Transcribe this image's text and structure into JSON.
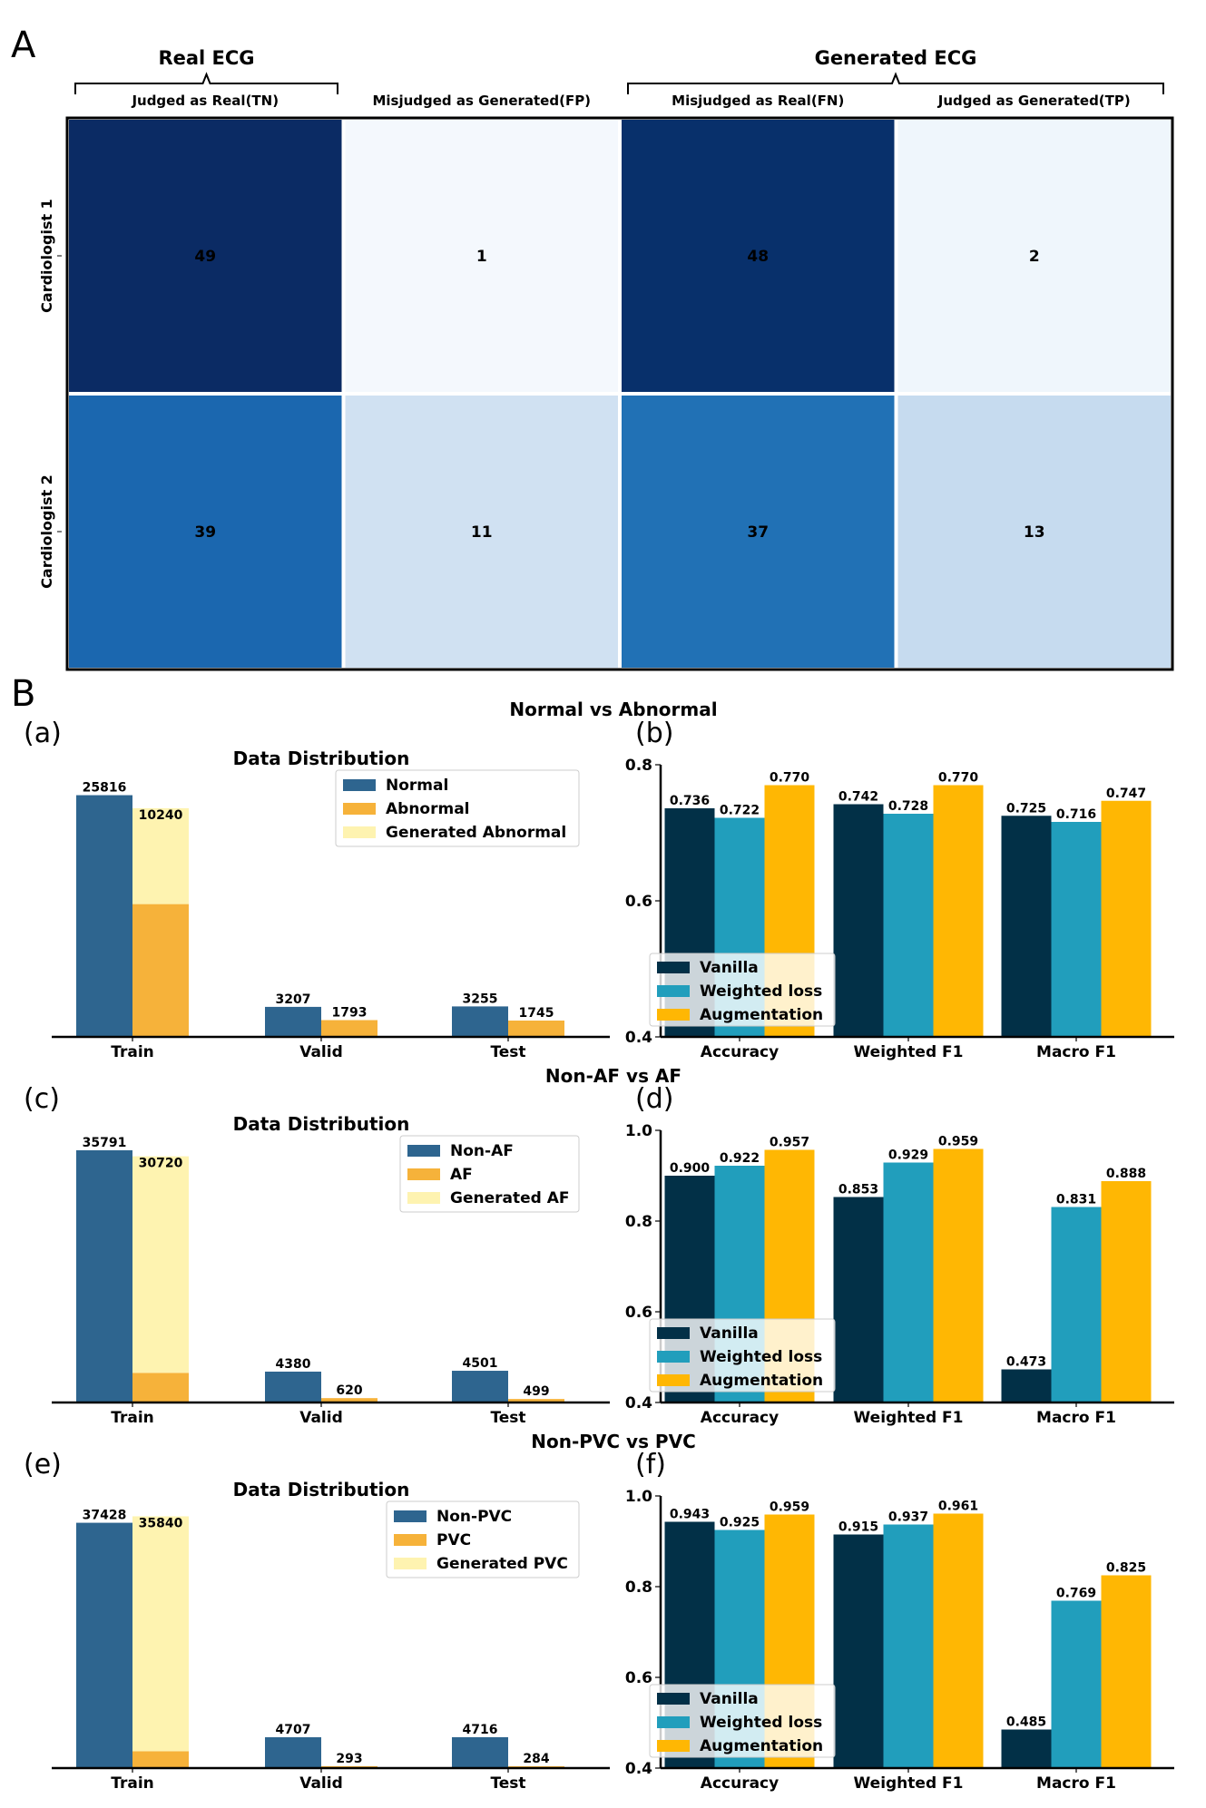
{
  "panel_a": {
    "letter": "A",
    "groups": [
      "Real ECG",
      "Generated ECG"
    ],
    "columns": [
      "Judged as Real(TN)",
      "Misjudged as Generated(FP)",
      "Misjudged as Real(FN)",
      "Judged as Generated(TP)"
    ],
    "rows": [
      "Cardiologist 1",
      "Cardiologist 2"
    ],
    "cells": [
      [
        49,
        1,
        48,
        2
      ],
      [
        39,
        11,
        37,
        13
      ]
    ],
    "colors": {
      "c49": "#0b2b64",
      "c48": "#08306b",
      "c39": "#1b67af",
      "c37": "#2171b5",
      "c1": "#f4f8fd",
      "c2": "#eff6fc",
      "c11": "#d0e1f2",
      "c13": "#c6dbef"
    }
  },
  "panel_b": {
    "letter": "B",
    "rows": [
      {
        "title": "Normal vs Abnormal",
        "left_tag": "(a)",
        "right_tag": "(b)"
      },
      {
        "title": "Non-AF vs AF",
        "left_tag": "(c)",
        "right_tag": "(d)"
      },
      {
        "title": "Non-PVC vs PVC",
        "left_tag": "(e)",
        "right_tag": "(f)"
      }
    ]
  },
  "chart_data": [
    {
      "type": "bar",
      "tag": "(a)",
      "title": "Data Distribution",
      "categories": [
        "Train",
        "Valid",
        "Test"
      ],
      "series": [
        {
          "name": "Normal",
          "values": [
            25816,
            3207,
            3255
          ]
        },
        {
          "name": "Abnormal",
          "values": [
            14184,
            1793,
            1745
          ]
        },
        {
          "name": "Generated Abnormal",
          "values": [
            10240,
            null,
            null
          ],
          "stacked_on": "Abnormal"
        }
      ],
      "ylim": [
        0,
        28000
      ],
      "legend": "top-right"
    },
    {
      "type": "bar",
      "tag": "(b)",
      "title": "",
      "categories": [
        "Accuracy",
        "Weighted F1",
        "Macro F1"
      ],
      "series": [
        {
          "name": "Vanilla",
          "values": [
            0.736,
            0.742,
            0.725
          ]
        },
        {
          "name": "Weighted loss",
          "values": [
            0.722,
            0.728,
            0.716
          ]
        },
        {
          "name": "Augmentation",
          "values": [
            0.77,
            0.77,
            0.747
          ]
        }
      ],
      "yticks": [
        "0.4",
        "0.6",
        "0.8"
      ],
      "ylim": [
        0.4,
        0.8
      ],
      "legend": "bottom-left"
    },
    {
      "type": "bar",
      "tag": "(c)",
      "title": "Data Distribution",
      "categories": [
        "Train",
        "Valid",
        "Test"
      ],
      "series": [
        {
          "name": "Non-AF",
          "values": [
            35791,
            4380,
            4501
          ]
        },
        {
          "name": "AF",
          "values": [
            4209,
            620,
            499
          ]
        },
        {
          "name": "Generated AF",
          "values": [
            30720,
            null,
            null
          ],
          "stacked_on": "AF"
        }
      ],
      "ylim": [
        0,
        37200
      ],
      "legend": "top-right"
    },
    {
      "type": "bar",
      "tag": "(d)",
      "title": "",
      "categories": [
        "Accuracy",
        "Weighted F1",
        "Macro F1"
      ],
      "series": [
        {
          "name": "Vanilla",
          "values": [
            0.9,
            0.853,
            0.473
          ]
        },
        {
          "name": "Weighted loss",
          "values": [
            0.922,
            0.929,
            0.831
          ]
        },
        {
          "name": "Augmentation",
          "values": [
            0.957,
            0.959,
            0.888
          ]
        }
      ],
      "yticks": [
        "0.4",
        "0.6",
        "0.8",
        "1.0"
      ],
      "ylim": [
        0.4,
        1.0
      ],
      "legend": "bottom-left"
    },
    {
      "type": "bar",
      "tag": "(e)",
      "title": "Data Distribution",
      "categories": [
        "Train",
        "Valid",
        "Test"
      ],
      "series": [
        {
          "name": "Non-PVC",
          "values": [
            37428,
            4707,
            4716
          ]
        },
        {
          "name": "PVC",
          "values": [
            2572,
            293,
            284
          ]
        },
        {
          "name": "Generated PVC",
          "values": [
            35840,
            null,
            null
          ],
          "stacked_on": "PVC"
        }
      ],
      "ylim": [
        0,
        40000
      ],
      "legend": "top-right"
    },
    {
      "type": "bar",
      "tag": "(f)",
      "title": "",
      "categories": [
        "Accuracy",
        "Weighted F1",
        "Macro F1"
      ],
      "series": [
        {
          "name": "Vanilla",
          "values": [
            0.943,
            0.915,
            0.485
          ]
        },
        {
          "name": "Weighted loss",
          "values": [
            0.925,
            0.937,
            0.769
          ]
        },
        {
          "name": "Augmentation",
          "values": [
            0.959,
            0.961,
            0.825
          ]
        }
      ],
      "yticks": [
        "0.4",
        "0.6",
        "0.8",
        "1.0"
      ],
      "ylim": [
        0.4,
        1.0
      ],
      "legend": "bottom-left"
    }
  ],
  "colors": {
    "class0": "#2e658f",
    "class1": "#f6b23a",
    "generated": "#fef3b0",
    "vanilla": "#023047",
    "weighted": "#219ebc",
    "augmentation": "#ffb703"
  }
}
